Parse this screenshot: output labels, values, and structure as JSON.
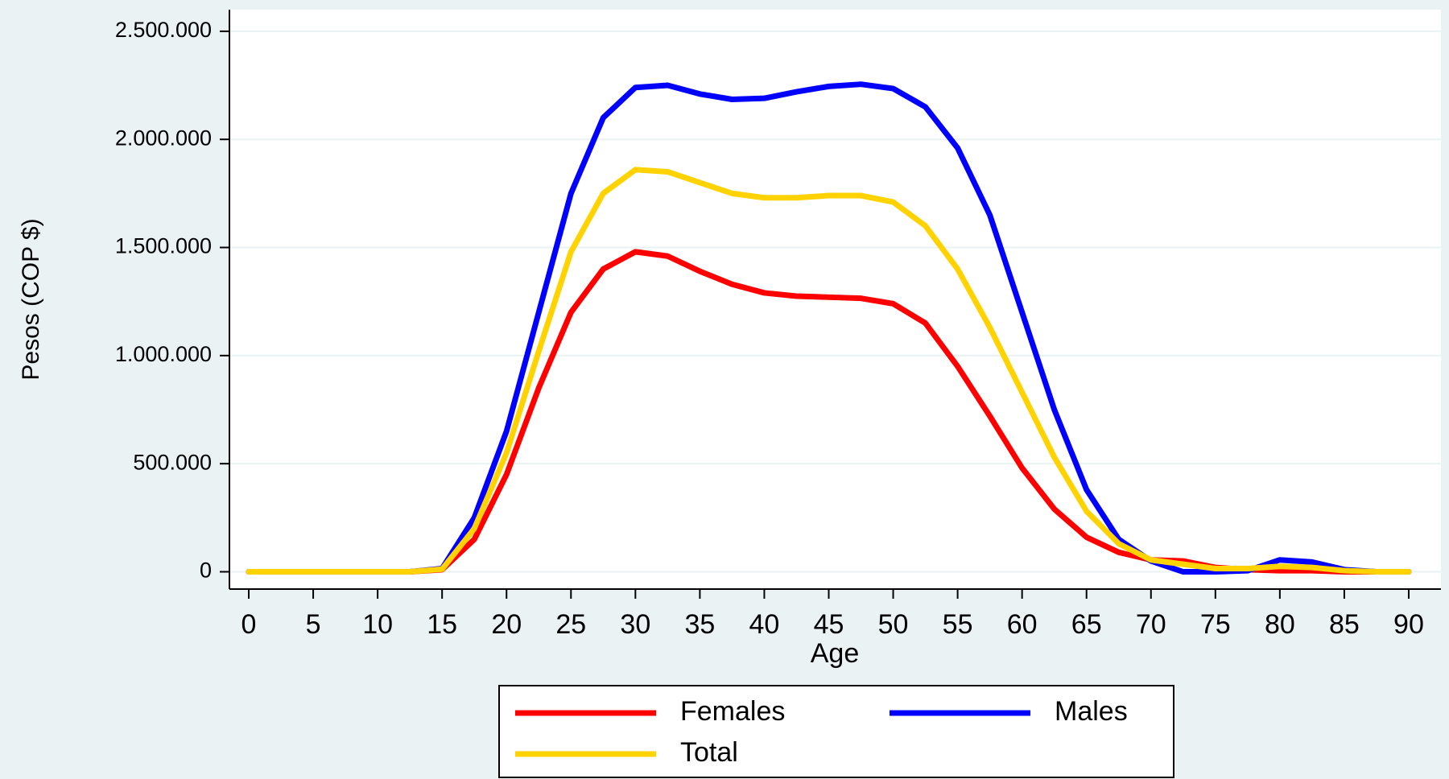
{
  "chart_data": {
    "type": "line",
    "y_label": "Pesos (COP $)",
    "x_label": "Age",
    "x": [
      0,
      2.5,
      5,
      7.5,
      10,
      12.5,
      15,
      17.5,
      20,
      22.5,
      25,
      27.5,
      30,
      32.5,
      35,
      37.5,
      40,
      42.5,
      45,
      47.5,
      50,
      52.5,
      55,
      57.5,
      60,
      62.5,
      65,
      67.5,
      70,
      72.5,
      75,
      77.5,
      80,
      82.5,
      85,
      87.5,
      90
    ],
    "series": [
      {
        "name": "Females",
        "color": "#ff0000",
        "values": [
          0,
          0,
          0,
          0,
          0,
          0,
          10000,
          150000,
          450000,
          850000,
          1200000,
          1400000,
          1480000,
          1460000,
          1390000,
          1330000,
          1290000,
          1275000,
          1270000,
          1265000,
          1240000,
          1150000,
          950000,
          720000,
          480000,
          290000,
          160000,
          90000,
          55000,
          50000,
          20000,
          10000,
          5000,
          5000,
          0,
          0,
          0
        ]
      },
      {
        "name": "Males",
        "color": "#0000ff",
        "values": [
          0,
          0,
          0,
          0,
          0,
          0,
          15000,
          250000,
          650000,
          1200000,
          1750000,
          2100000,
          2240000,
          2250000,
          2210000,
          2185000,
          2190000,
          2220000,
          2245000,
          2255000,
          2235000,
          2150000,
          1960000,
          1650000,
          1200000,
          750000,
          380000,
          150000,
          50000,
          0,
          0,
          5000,
          55000,
          45000,
          10000,
          0,
          0
        ]
      },
      {
        "name": "Total",
        "color": "#ffd200",
        "values": [
          0,
          0,
          0,
          0,
          0,
          0,
          12000,
          200000,
          550000,
          1020000,
          1480000,
          1750000,
          1860000,
          1850000,
          1800000,
          1750000,
          1730000,
          1730000,
          1740000,
          1740000,
          1710000,
          1600000,
          1400000,
          1130000,
          830000,
          530000,
          280000,
          130000,
          55000,
          35000,
          15000,
          15000,
          25000,
          20000,
          5000,
          0,
          0
        ]
      }
    ],
    "xlim": [
      -1.5,
      92.5
    ],
    "xticks": [
      0,
      5,
      10,
      15,
      20,
      25,
      30,
      35,
      40,
      45,
      50,
      55,
      60,
      65,
      70,
      75,
      80,
      85,
      90
    ],
    "ylim": [
      -80000,
      2600000
    ],
    "yticks": [
      {
        "value": 0,
        "label": "0"
      },
      {
        "value": 500000,
        "label": "500.000"
      },
      {
        "value": 1000000,
        "label": "1.000.000"
      },
      {
        "value": 1500000,
        "label": "1.500.000"
      },
      {
        "value": 2000000,
        "label": "2.000.000"
      },
      {
        "value": 2500000,
        "label": "2.500.000"
      }
    ],
    "grid": true,
    "legend": "bottom"
  }
}
